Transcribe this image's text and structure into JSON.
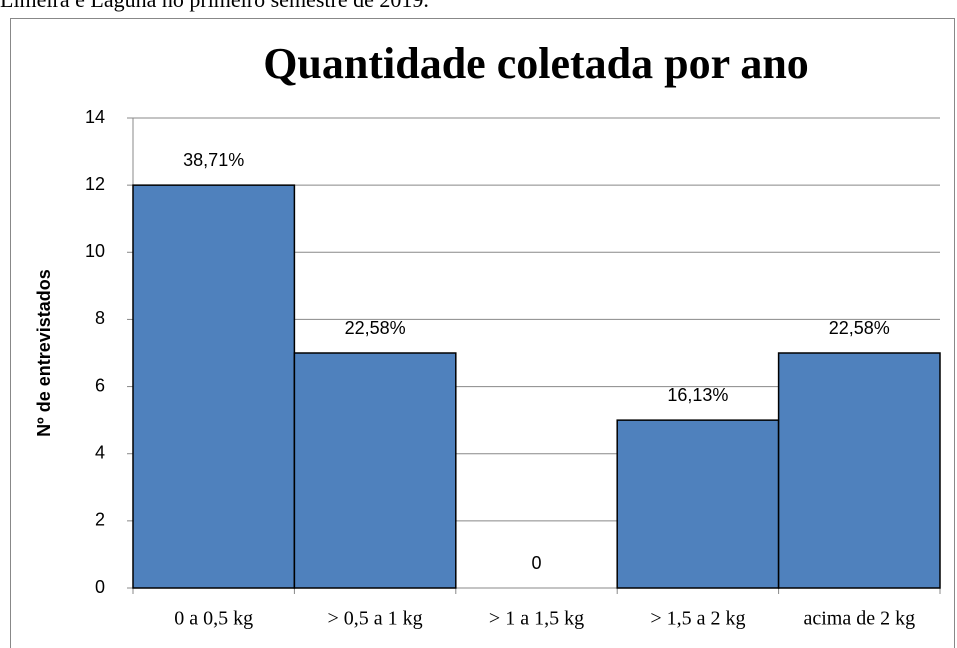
{
  "caption": "Limeira e Laguna no primeiro semestre de 2019.",
  "chart_data": {
    "type": "bar",
    "title": "Quantidade coletada por ano",
    "y_label": "Nº de entrevistados",
    "categories": [
      "0 a 0,5 kg",
      "> 0,5 a 1 kg",
      "> 1 a 1,5 kg",
      "> 1,5 a 2 kg",
      "acima de 2 kg"
    ],
    "values": [
      12,
      7,
      0,
      5,
      7
    ],
    "annotations": [
      "38,71%",
      "22,58%",
      "0",
      "16,13%",
      "22,58%"
    ],
    "color": "#4f81bd",
    "ylim": [
      0,
      14
    ],
    "yticks": [
      0,
      2,
      4,
      6,
      8,
      10,
      12,
      14
    ],
    "grid": true
  }
}
